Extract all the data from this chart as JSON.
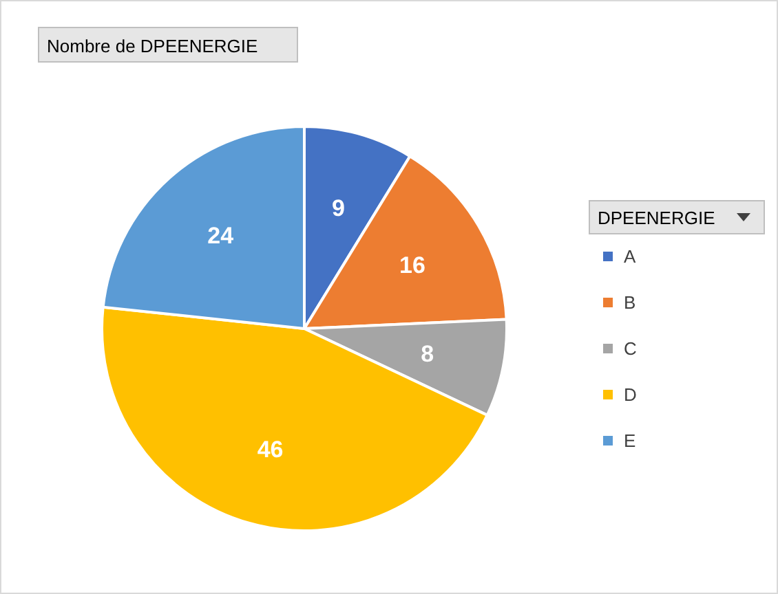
{
  "chart_data": {
    "type": "pie",
    "title": "Nombre de DPEENERGIE",
    "legend_title": "DPEENERGIE",
    "categories": [
      "A",
      "B",
      "C",
      "D",
      "E"
    ],
    "values": [
      9,
      16,
      8,
      46,
      24
    ],
    "colors": [
      "#4472c4",
      "#ed7d31",
      "#a5a5a5",
      "#ffc000",
      "#5b9bd5"
    ],
    "data_labels": true,
    "legend": "right"
  }
}
